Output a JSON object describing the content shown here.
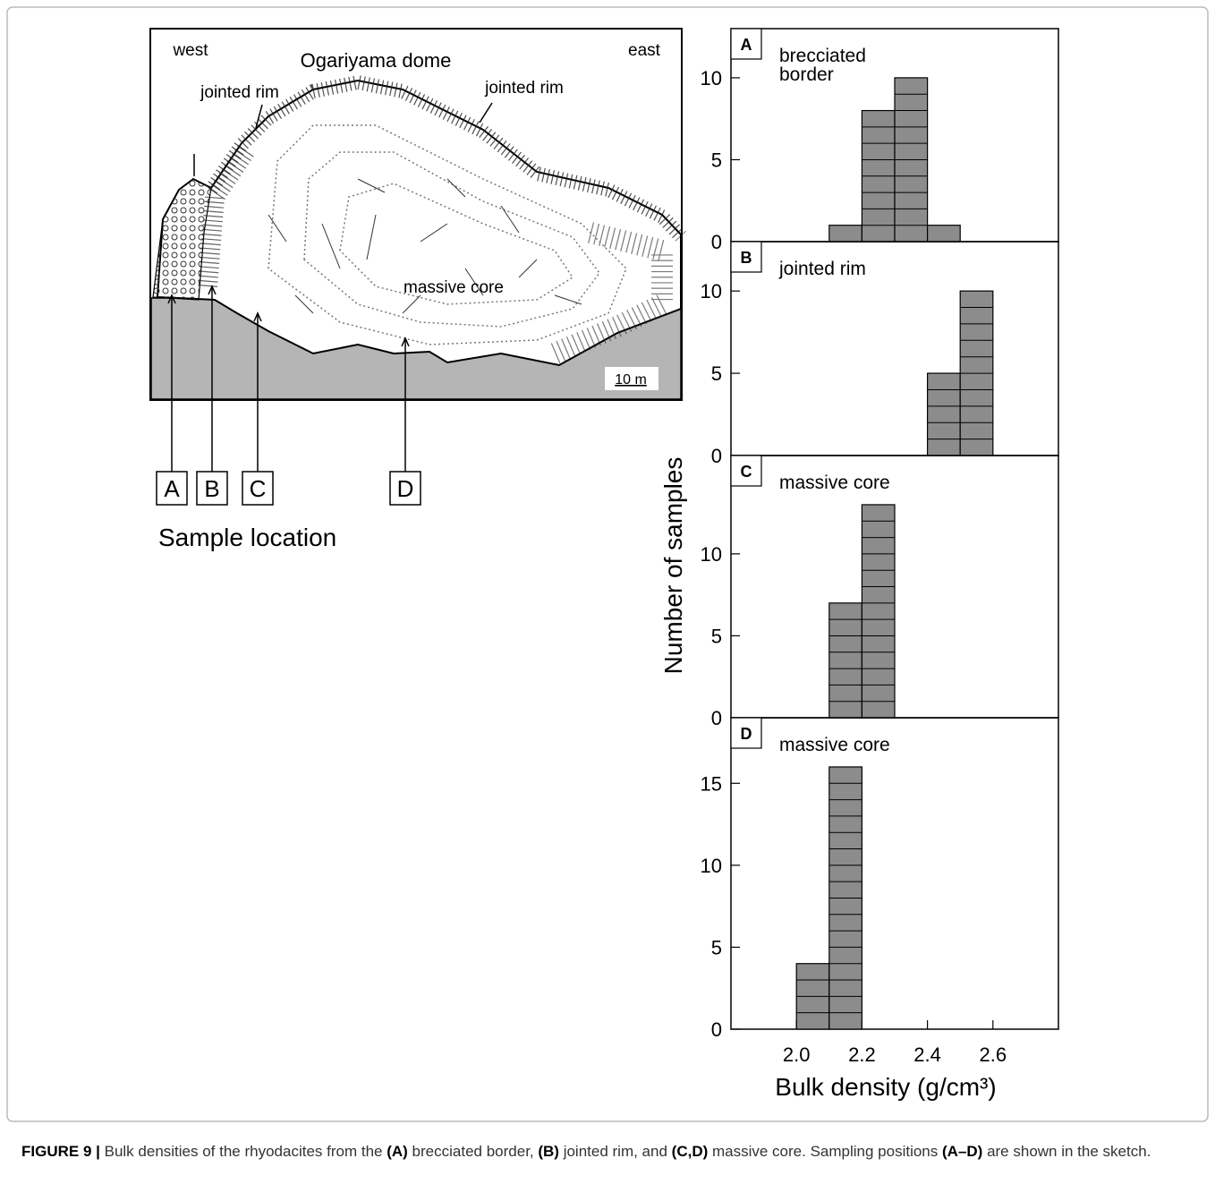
{
  "sketch": {
    "west": "west",
    "east": "east",
    "title": "Ogariyama dome",
    "jointed_rim_left": "jointed rim",
    "jointed_rim_right": "jointed rim",
    "brecciated_border": "brecciated border",
    "massive_core": "massive core",
    "scale": "10 m",
    "locations": [
      "A",
      "B",
      "C",
      "D"
    ],
    "locations_title": "Sample location"
  },
  "axis_labels": {
    "y": "Number of samples",
    "x": "Bulk density (g/cm³)"
  },
  "chart_data": [
    {
      "type": "histogram",
      "panel": "A",
      "title": "brecciated border",
      "bins": [
        2.1,
        2.2,
        2.3,
        2.4,
        2.5
      ],
      "values": [
        1,
        8,
        10,
        1
      ],
      "color": "#8c8c8c",
      "xlim": [
        1.8,
        2.8
      ],
      "ylim": [
        0,
        13
      ],
      "yticks": [
        0,
        5,
        10
      ]
    },
    {
      "type": "histogram",
      "panel": "B",
      "title": "jointed rim",
      "bins": [
        2.4,
        2.5,
        2.6
      ],
      "values": [
        5,
        10
      ],
      "color": "#8c8c8c",
      "xlim": [
        1.8,
        2.8
      ],
      "ylim": [
        0,
        13
      ],
      "yticks": [
        0,
        5,
        10
      ]
    },
    {
      "type": "histogram",
      "panel": "C",
      "title": "massive core",
      "bins": [
        2.1,
        2.2,
        2.3
      ],
      "values": [
        7,
        13
      ],
      "color": "#8c8c8c",
      "xlim": [
        1.8,
        2.8
      ],
      "ylim": [
        0,
        16
      ],
      "yticks": [
        0,
        5,
        10
      ]
    },
    {
      "type": "histogram",
      "panel": "D",
      "title": "massive core",
      "bins": [
        2.0,
        2.1,
        2.2
      ],
      "values": [
        4,
        16
      ],
      "color": "#8c8c8c",
      "xlim": [
        1.8,
        2.8
      ],
      "ylim": [
        0,
        19
      ],
      "yticks": [
        0,
        5,
        10,
        15
      ],
      "xticks": [
        {
          "value": 2,
          "label": "2.0"
        },
        2.2,
        2.4,
        2.6
      ]
    }
  ],
  "caption": {
    "parts": [
      "FIGURE 9 |",
      " Bulk densities of the rhyodacites from the ",
      "(A)",
      " brecciated border, ",
      "(B)",
      " jointed rim, and ",
      "(C,D)",
      " massive core. Sampling positions ",
      "(A–D)",
      " are shown in the sketch."
    ]
  }
}
